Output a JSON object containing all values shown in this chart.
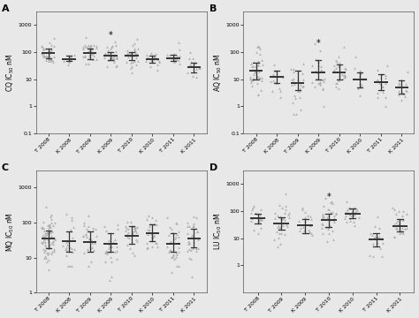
{
  "categories_8": [
    "T 2008",
    "K 2008",
    "T 2009",
    "K 2009",
    "T 2010",
    "K 2010",
    "T 2011",
    "K 2011"
  ],
  "categories_D": [
    "T 2008",
    "T 2009",
    "K 2009",
    "T 2010",
    "K 2010",
    "T 2011",
    "K 2011"
  ],
  "bg_color": "#e8e8e8",
  "panel_bg": "#e8e8e8",
  "dot_color": "#aaaaaa",
  "line_color": "#333333",
  "panels": {
    "A": {
      "ylabel": "CQ IC$_{50}$ nM",
      "ylim": [
        0.1,
        3000
      ],
      "yticks": [
        0.1,
        1,
        10,
        100,
        1000
      ],
      "yticklabels": [
        "0.1",
        "1",
        "10",
        "100",
        "1000"
      ],
      "star_idx": 3,
      "medians": [
        90,
        55,
        90,
        75,
        75,
        55,
        60,
        27
      ],
      "q1": [
        60,
        45,
        55,
        50,
        50,
        40,
        45,
        18
      ],
      "q3": [
        130,
        70,
        130,
        100,
        100,
        70,
        80,
        40
      ],
      "ns": [
        38,
        8,
        32,
        30,
        30,
        17,
        15,
        15
      ]
    },
    "B": {
      "ylabel": "AQ IC$_{50}$ nM",
      "ylim": [
        0.1,
        3000
      ],
      "yticks": [
        0.1,
        1,
        10,
        100,
        1000
      ],
      "yticklabels": [
        "0.1",
        "1",
        "10",
        "100",
        "1000"
      ],
      "star_idx": 3,
      "medians": [
        20,
        12,
        7,
        18,
        18,
        10,
        8,
        5
      ],
      "q1": [
        10,
        7,
        4,
        10,
        10,
        5,
        4,
        3
      ],
      "q3": [
        40,
        20,
        20,
        50,
        35,
        18,
        15,
        9
      ],
      "ns": [
        43,
        13,
        27,
        27,
        26,
        16,
        18,
        15
      ]
    },
    "C": {
      "ylabel": "MQ IC$_{50}$ nM",
      "ylim": [
        1,
        3000
      ],
      "yticks": [
        1,
        10,
        100,
        1000
      ],
      "yticklabels": [
        "1",
        "10",
        "100",
        "1000"
      ],
      "star_idx": -1,
      "medians": [
        35,
        30,
        28,
        25,
        42,
        50,
        25,
        35
      ],
      "q1": [
        18,
        15,
        15,
        15,
        25,
        30,
        15,
        20
      ],
      "q3": [
        60,
        55,
        55,
        50,
        80,
        90,
        50,
        65
      ],
      "ns": [
        73,
        22,
        29,
        28,
        29,
        27,
        31,
        30
      ]
    },
    "D": {
      "ylabel": "LU IC$_{50}$ nM",
      "ylim": [
        0.1,
        3000
      ],
      "yticks": [
        1,
        10,
        100,
        1000
      ],
      "yticklabels": [
        "1",
        "10",
        "100",
        "1000"
      ],
      "star_idx": 3,
      "medians": [
        55,
        35,
        30,
        45,
        80,
        9,
        28
      ],
      "q1": [
        35,
        20,
        15,
        25,
        55,
        5,
        18
      ],
      "q3": [
        80,
        60,
        50,
        80,
        120,
        15,
        50
      ],
      "ns": [
        20,
        33,
        20,
        35,
        26,
        20,
        25
      ]
    }
  }
}
